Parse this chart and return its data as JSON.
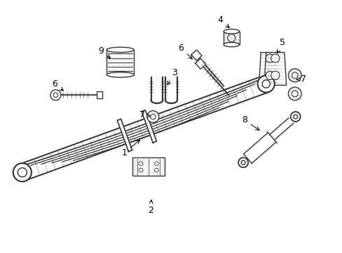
{
  "background_color": "#ffffff",
  "line_color": "#333333",
  "line_width": 1.0,
  "fig_width": 4.89,
  "fig_height": 3.6,
  "dpi": 100
}
